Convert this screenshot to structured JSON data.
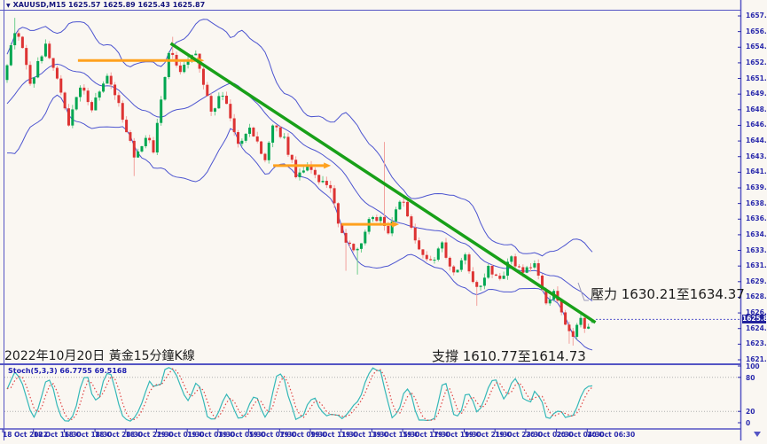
{
  "window": {
    "bg": "#faf7f2",
    "frame_color": "#5454c4"
  },
  "symbol_bar": {
    "collapse_icon": "triangle-down",
    "text": "XAUUSD,M15 1625.57 1625.89 1625.43 1625.87",
    "color": "#16167e"
  },
  "price_axis": {
    "color": "#2a2aac",
    "labels": [
      "1657.90",
      "1656.25",
      "1654.60",
      "1652.95",
      "1651.30",
      "1649.65",
      "1648.00",
      "1646.35",
      "1644.70",
      "1643.05",
      "1641.40",
      "1639.75",
      "1638.10",
      "1636.45",
      "1634.80",
      "1633.15",
      "1631.50",
      "1629.85",
      "1628.20",
      "1626.55",
      "1624.90",
      "1623.25",
      "1621.60"
    ],
    "top_value": 1657.9,
    "step": 1.65,
    "current_price_tag": {
      "value": "1625.87",
      "bg": "#22229c",
      "fg": "#ffffff"
    }
  },
  "time_axis": {
    "color": "#2a2aac",
    "labels": [
      "18 Oct 2022",
      "18 Oct 16:30",
      "18 Oct 18:30",
      "18 Oct 20:30",
      "18 Oct 22:30",
      "19 Oct 01:30",
      "19 Oct 03:30",
      "19 Oct 05:30",
      "19 Oct 07:30",
      "19 Oct 09:30",
      "19 Oct 11:30",
      "19 Oct 13:30",
      "19 Oct 15:30",
      "19 Oct 17:30",
      "19 Oct 19:30",
      "19 Oct 21:30",
      "19 Oct 23:30",
      "20 Oct 02:30",
      "20 Oct 04:30",
      "20 Oct 06:30"
    ]
  },
  "annotations": {
    "title_text": "2022年10月20日 黃金15分鐘K線",
    "resistance_text": "壓力 1630.21至1634.37",
    "support_text": "支撐 1610.77至1614.73"
  },
  "stoch_panel": {
    "label": "Stoch(5,3,3) 66.7755 69.5168",
    "scale_labels": [
      "100",
      "80",
      "20",
      "0"
    ],
    "scale_values": [
      100,
      80,
      20,
      0
    ],
    "level_lines": [
      80,
      20
    ],
    "k_color": "#35b8b8",
    "d_color": "#e04444"
  },
  "colors": {
    "up_body": "#00a651",
    "up_wick": "#6fce8d",
    "down_body": "#dd3333",
    "down_wick": "#f2a09c",
    "band": "#4d55d0",
    "trend": "#18a018",
    "hline": "#ffa11e",
    "bid_line": "#5555cc"
  },
  "chart_data": {
    "type": "candlestick",
    "symbol": "XAUUSD",
    "timeframe": "M15",
    "title": "2022年10月20日 黃金15分鐘K線",
    "ohlc_current": {
      "open": 1625.57,
      "high": 1625.89,
      "low": 1625.43,
      "close": 1625.87
    },
    "price_axis_range": [
      1621.6,
      1657.9
    ],
    "time_range": [
      "18 Oct 2022 15:30",
      "20 Oct 2022 06:30"
    ],
    "n_candles": 153,
    "close_path_anchors": [
      [
        0,
        1653.0
      ],
      [
        2,
        1656.3
      ],
      [
        4,
        1654.6
      ],
      [
        6,
        1650.8
      ],
      [
        10,
        1654.7
      ],
      [
        13,
        1651.4
      ],
      [
        16,
        1646.4
      ],
      [
        19,
        1650.3
      ],
      [
        22,
        1648.3
      ],
      [
        26,
        1651.4
      ],
      [
        30,
        1647.3
      ],
      [
        33,
        1642.9
      ],
      [
        36,
        1645.2
      ],
      [
        38,
        1643.6
      ],
      [
        42,
        1654.3
      ],
      [
        45,
        1652.1
      ],
      [
        49,
        1653.9
      ],
      [
        53,
        1647.8
      ],
      [
        56,
        1649.7
      ],
      [
        60,
        1644.2
      ],
      [
        63,
        1646.4
      ],
      [
        67,
        1642.4
      ],
      [
        69,
        1646.5
      ],
      [
        72,
        1644.8
      ],
      [
        75,
        1641.2
      ],
      [
        78,
        1642.3
      ],
      [
        81,
        1640.6
      ],
      [
        84,
        1639.9
      ],
      [
        86,
        1636.1
      ],
      [
        88,
        1633.8
      ],
      [
        91,
        1633.3
      ],
      [
        94,
        1636.2
      ],
      [
        97,
        1636.7
      ],
      [
        99,
        1634.9
      ],
      [
        101,
        1637.7
      ],
      [
        103,
        1638.1
      ],
      [
        106,
        1633.9
      ],
      [
        110,
        1632.0
      ],
      [
        113,
        1633.6
      ],
      [
        116,
        1630.6
      ],
      [
        119,
        1632.4
      ],
      [
        122,
        1628.9
      ],
      [
        125,
        1631.4
      ],
      [
        128,
        1630.1
      ],
      [
        131,
        1632.3
      ],
      [
        134,
        1630.7
      ],
      [
        137,
        1631.7
      ],
      [
        140,
        1627.4
      ],
      [
        142,
        1629.0
      ],
      [
        145,
        1625.4
      ],
      [
        147,
        1624.3
      ],
      [
        149,
        1626.1
      ],
      [
        150,
        1625.1
      ],
      [
        152,
        1625.87
      ]
    ],
    "wick_spikes": [
      {
        "i": 2,
        "high": 1657.7
      },
      {
        "i": 33,
        "low": 1641.0
      },
      {
        "i": 43,
        "high": 1655.7
      },
      {
        "i": 88,
        "low": 1631.0
      },
      {
        "i": 91,
        "low": 1630.6
      },
      {
        "i": 98,
        "high": 1644.6
      },
      {
        "i": 122,
        "low": 1627.3
      },
      {
        "i": 146,
        "low": 1623.3
      },
      {
        "i": 147,
        "low": 1623.1
      }
    ],
    "trendline": {
      "i1": 42.5,
      "price1": 1655.0,
      "i2": 152.8,
      "price2": 1625.55
    },
    "resistance_arrows": [
      {
        "i1": 18.4,
        "i2": 51.2,
        "price": 1653.2
      },
      {
        "i1": 69.1,
        "i2": 84.1,
        "price": 1642.1
      },
      {
        "i1": 86.9,
        "i2": 101.8,
        "price": 1635.9
      }
    ],
    "resistance_zone": [
      1630.21,
      1634.37
    ],
    "support_zone": [
      1610.77,
      1614.73
    ],
    "indicators": {
      "bollinger": {
        "period": 20,
        "deviation": 2
      },
      "stochastic": {
        "k": 5,
        "d": 3,
        "slowing": 3,
        "last_k": 66.7755,
        "last_d": 69.5168
      }
    }
  }
}
